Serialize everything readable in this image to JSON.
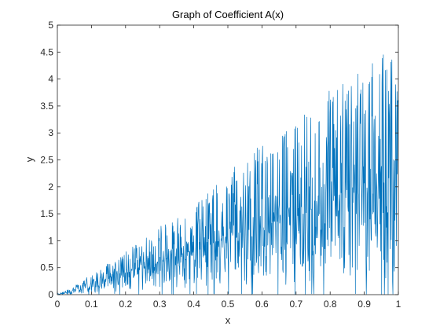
{
  "chart_data": {
    "type": "line",
    "title": "Graph of Coefficient A(x)",
    "xlabel": "x",
    "ylabel": "y",
    "xlim": [
      0,
      1
    ],
    "ylim": [
      0,
      5
    ],
    "xticks": [
      0,
      0.1,
      0.2,
      0.3,
      0.4,
      0.5,
      0.6,
      0.7,
      0.8,
      0.9,
      1
    ],
    "xtick_labels": [
      "0",
      "0.1",
      "0.2",
      "0.3",
      "0.4",
      "0.5",
      "0.6",
      "0.7",
      "0.8",
      "0.9",
      "1"
    ],
    "yticks": [
      0,
      0.5,
      1,
      1.5,
      2,
      2.5,
      3,
      3.5,
      4,
      4.5,
      5
    ],
    "ytick_labels": [
      "0",
      "0.5",
      "1",
      "1.5",
      "2",
      "2.5",
      "3",
      "3.5",
      "4",
      "4.5",
      "5"
    ],
    "grid": false,
    "legend": "none",
    "series": [
      {
        "color": "#0072BD",
        "x": [
          0,
          0.02,
          0.04,
          0.06,
          0.08,
          0.1,
          0.12,
          0.14,
          0.16,
          0.18,
          0.2,
          0.22,
          0.24,
          0.26,
          0.28,
          0.3,
          0.32,
          0.34,
          0.36,
          0.38,
          0.4,
          0.42,
          0.44,
          0.46,
          0.48,
          0.5,
          0.52,
          0.54,
          0.56,
          0.58,
          0.6,
          0.62,
          0.64,
          0.66,
          0.68,
          0.7,
          0.72,
          0.74,
          0.76,
          0.78,
          0.8,
          0.82,
          0.84,
          0.86,
          0.88,
          0.9,
          0.92,
          0.94,
          0.96,
          0.98,
          1.0
        ],
        "y_upper": [
          0.02,
          0.06,
          0.12,
          0.2,
          0.3,
          0.38,
          0.45,
          0.55,
          0.62,
          0.7,
          0.8,
          0.9,
          1.0,
          1.2,
          1.05,
          1.3,
          1.35,
          1.4,
          1.45,
          1.6,
          1.7,
          1.8,
          1.9,
          2.0,
          2.15,
          2.3,
          2.4,
          2.5,
          2.55,
          2.7,
          2.8,
          2.9,
          3.0,
          3.05,
          3.15,
          3.3,
          3.4,
          3.5,
          3.6,
          3.7,
          3.8,
          3.9,
          4.0,
          4.0,
          4.1,
          4.2,
          4.3,
          4.4,
          4.5,
          4.55,
          4.0
        ],
        "y_lower": [
          0,
          0,
          0,
          0.01,
          0.02,
          0.03,
          0.04,
          0.05,
          0.05,
          0.06,
          0.08,
          0.08,
          0.08,
          0.1,
          0.1,
          0.1,
          0.1,
          0.1,
          0.12,
          0.12,
          0.12,
          0.12,
          0.12,
          0.12,
          0.15,
          0.15,
          0.15,
          0.15,
          0.15,
          0.15,
          0.15,
          0.15,
          0.15,
          0.15,
          0.15,
          0.15,
          0.15,
          0.15,
          0.15,
          0.15,
          0.15,
          0.15,
          0.15,
          0.15,
          0.15,
          0.15,
          0.15,
          0.15,
          0.15,
          0.15,
          0.4
        ],
        "y_center": [
          0.01,
          0.03,
          0.06,
          0.1,
          0.15,
          0.2,
          0.25,
          0.3,
          0.33,
          0.38,
          0.42,
          0.45,
          0.5,
          0.55,
          0.58,
          0.62,
          0.66,
          0.7,
          0.73,
          0.78,
          0.82,
          0.86,
          0.9,
          0.95,
          1.0,
          1.05,
          1.08,
          1.12,
          1.15,
          1.2,
          1.25,
          1.3,
          1.34,
          1.38,
          1.42,
          1.48,
          1.52,
          1.56,
          1.6,
          1.65,
          1.7,
          1.75,
          1.8,
          1.85,
          1.9,
          1.95,
          2.0,
          2.05,
          2.1,
          2.15,
          2.2
        ]
      }
    ]
  }
}
